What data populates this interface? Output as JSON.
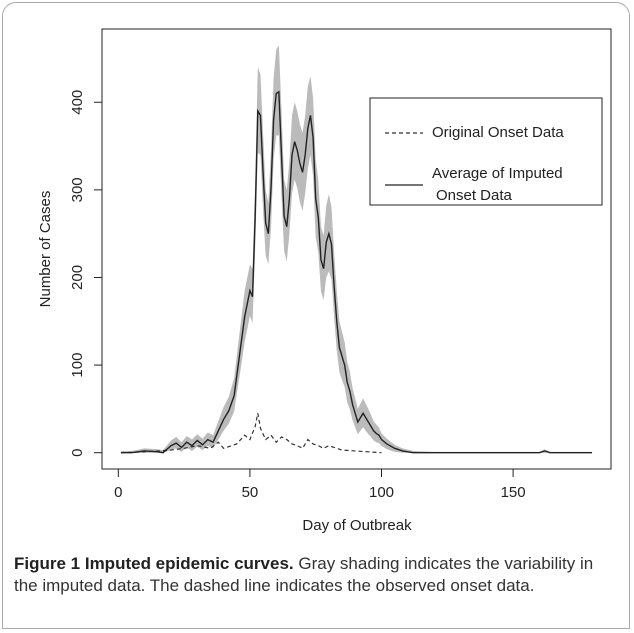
{
  "chart_data": {
    "type": "line",
    "xlabel": "Day of Outbreak",
    "ylabel": "Number of Cases",
    "xlim": [
      -6.2,
      187.2
    ],
    "ylim": [
      -18.6,
      483.6
    ],
    "xticks": [
      0,
      50,
      100,
      150
    ],
    "yticks": [
      0,
      100,
      200,
      300,
      400
    ],
    "legend": "upper right",
    "band_color": "#bbbbbb",
    "series": [
      {
        "name": "Original Onset Data",
        "color": "#333333",
        "dash": true,
        "x": [
          1,
          10,
          20,
          25,
          30,
          35,
          38,
          40,
          45,
          48,
          50,
          52,
          53,
          54,
          56,
          58,
          60,
          62,
          64,
          66,
          68,
          70,
          72,
          74,
          76,
          78,
          80,
          85,
          90,
          95,
          100
        ],
        "values": [
          0,
          1,
          3,
          5,
          8,
          5,
          12,
          5,
          10,
          20,
          15,
          30,
          45,
          28,
          15,
          20,
          12,
          18,
          15,
          10,
          8,
          5,
          15,
          10,
          8,
          5,
          8,
          3,
          2,
          1,
          0
        ]
      },
      {
        "name": "Average of Imputed\nOnset Data",
        "color": "#222222",
        "dash": false,
        "x": [
          1,
          5,
          10,
          15,
          17,
          20,
          22,
          24,
          26,
          28,
          30,
          32,
          34,
          36,
          38,
          40,
          42,
          44,
          46,
          48,
          50,
          51,
          52,
          53,
          54,
          55,
          56,
          57,
          58,
          59,
          60,
          61,
          62,
          63,
          64,
          65,
          66,
          67,
          68,
          69,
          70,
          71,
          72,
          73,
          74,
          75,
          76,
          77,
          78,
          79,
          80,
          81,
          82,
          83,
          84,
          85,
          86,
          87,
          88,
          89,
          90,
          91,
          92,
          93,
          94,
          95,
          96,
          97,
          98,
          99,
          100,
          102,
          105,
          108,
          112,
          120,
          140,
          160,
          162,
          164,
          180
        ],
        "values": [
          0,
          0,
          2,
          1,
          0,
          8,
          11,
          6,
          12,
          8,
          14,
          9,
          15,
          12,
          25,
          38,
          48,
          65,
          110,
          155,
          185,
          178,
          270,
          390,
          385,
          320,
          262,
          250,
          300,
          380,
          410,
          412,
          340,
          270,
          258,
          290,
          340,
          355,
          345,
          330,
          320,
          340,
          370,
          385,
          360,
          290,
          268,
          220,
          210,
          240,
          250,
          238,
          190,
          150,
          120,
          110,
          100,
          80,
          70,
          55,
          45,
          35,
          40,
          45,
          40,
          35,
          30,
          25,
          22,
          20,
          15,
          10,
          5,
          2,
          0,
          0,
          0,
          0,
          2,
          0,
          0
        ],
        "upper": [
          2,
          2,
          5,
          4,
          3,
          14,
          18,
          12,
          19,
          15,
          21,
          16,
          23,
          20,
          36,
          52,
          64,
          85,
          135,
          185,
          215,
          210,
          310,
          440,
          432,
          365,
          300,
          285,
          345,
          428,
          460,
          465,
          390,
          312,
          300,
          332,
          385,
          400,
          390,
          375,
          365,
          385,
          418,
          430,
          405,
          335,
          310,
          258,
          248,
          282,
          295,
          280,
          228,
          185,
          150,
          138,
          126,
          104,
          92,
          74,
          62,
          50,
          56,
          62,
          56,
          50,
          43,
          36,
          32,
          29,
          22,
          16,
          9,
          5,
          2,
          1,
          1,
          1,
          4,
          1,
          1
        ],
        "lower": [
          0,
          0,
          0,
          0,
          0,
          3,
          5,
          1,
          6,
          2,
          7,
          3,
          8,
          5,
          15,
          25,
          33,
          47,
          86,
          126,
          156,
          148,
          232,
          342,
          340,
          276,
          225,
          215,
          256,
          334,
          362,
          362,
          292,
          230,
          218,
          250,
          296,
          312,
          302,
          286,
          276,
          296,
          324,
          340,
          316,
          246,
          228,
          184,
          174,
          200,
          207,
          198,
          154,
          117,
          92,
          83,
          75,
          57,
          49,
          37,
          29,
          21,
          25,
          29,
          25,
          21,
          18,
          14,
          12,
          11,
          8,
          4,
          1,
          0,
          0,
          0,
          0,
          0,
          0,
          0,
          0
        ]
      }
    ]
  },
  "caption": {
    "label": "Figure 1 Imputed epidemic curves.",
    "text": "Gray shading indicates the variability in the imputed data. The dashed line indicates the observed onset data."
  }
}
